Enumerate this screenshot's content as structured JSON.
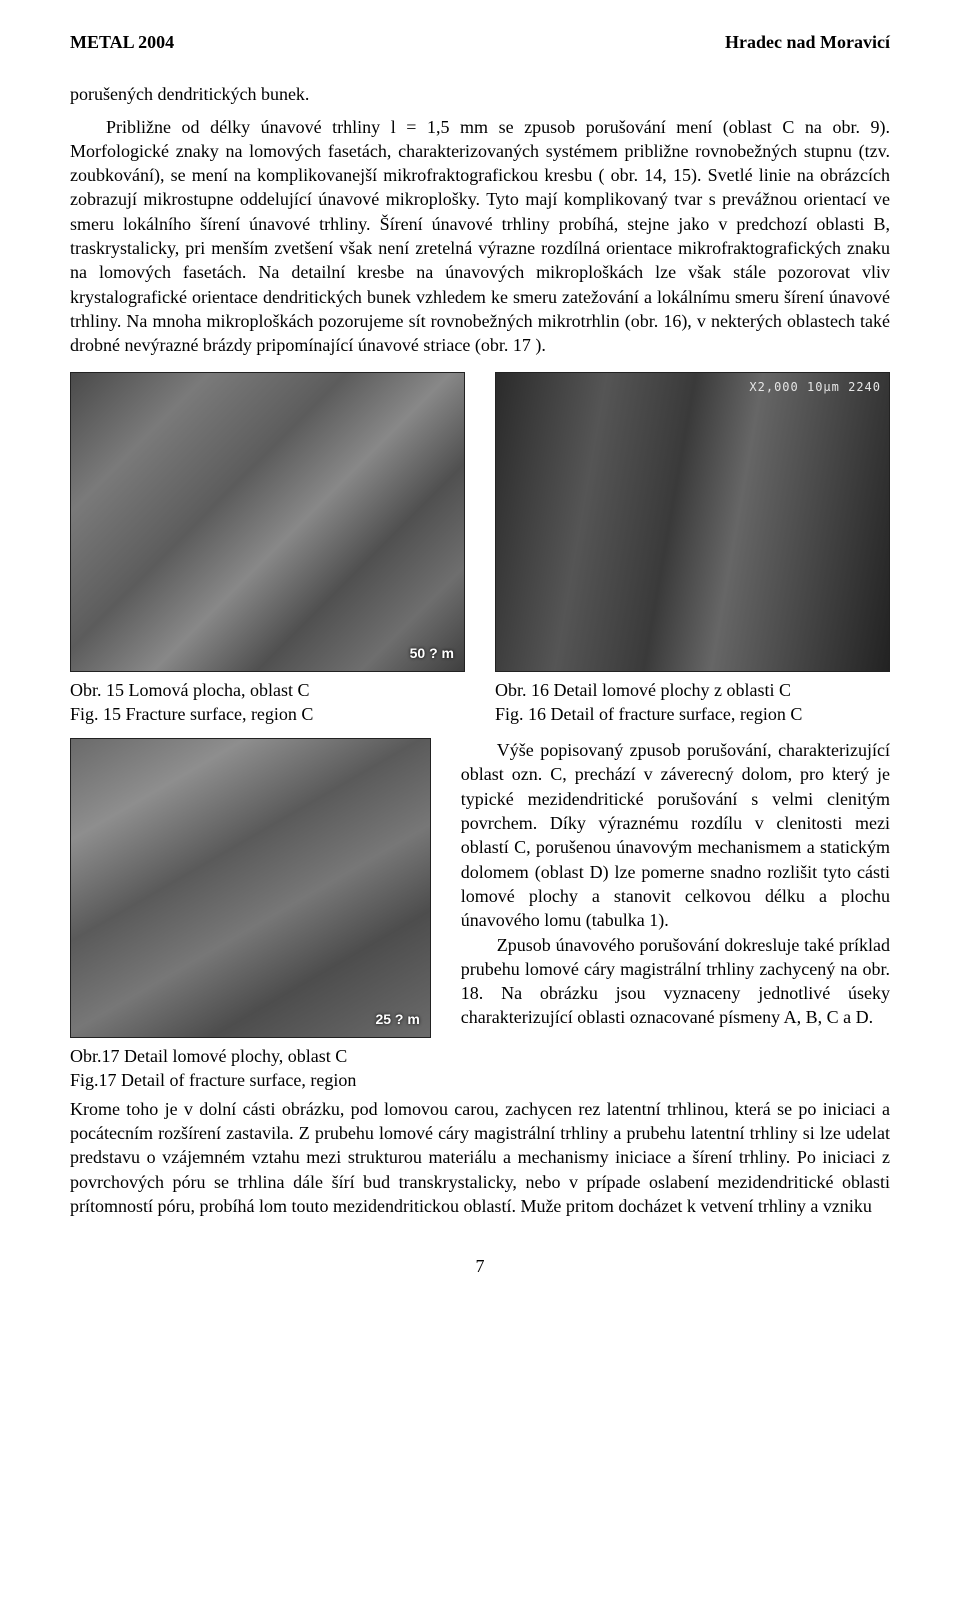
{
  "header": {
    "left": "METAL 2004",
    "right": "Hradec nad Moravicí"
  },
  "para1": "porušených dendritických bunek.",
  "para2": "Približne od délky únavové trhliny l = 1,5 mm se zpusob porušování mení (oblast C na obr. 9). Morfologické znaky na lomových fasetách, charakterizovaných systémem približne rovnobežných stupnu (tzv. zoubkování), se mení na komplikovanejší mikrofraktografickou kresbu ( obr. 14, 15). Svetlé linie na obrázcích zobrazují mikrostupne oddelující únavové mikroplošky. Tyto mají komplikovaný tvar s prevážnou orientací ve smeru lokálního šírení únavové trhliny. Šírení únavové trhliny probíhá, stejne jako v predchozí oblasti B, traskrystalicky, pri menším zvetšení však není zretelná výrazne rozdílná orientace mikrofraktografických znaku na lomových fasetách. Na detailní kresbe na únavových mikroploškách lze však stále pozorovat vliv krystalografické orientace dendritických bunek vzhledem ke smeru zatežování a lokálnímu smeru šírení únavové trhliny. Na mnoha mikroploškách pozorujeme sít rovnobežných mikrotrhlin (obr. 16), v nekterých oblastech také drobné nevýrazné brázdy pripomínající únavové striace (obr. 17 ).",
  "fig15": {
    "scale": "50 ? m",
    "caption_cs": "Obr. 15 Lomová plocha, oblast C",
    "caption_en": "Fig. 15 Fracture surface, region C"
  },
  "fig16": {
    "toplabel": "X2,000  10µm  2240",
    "caption_cs": "Obr. 16 Detail lomové plochy z oblasti C",
    "caption_en": "Fig. 16 Detail of fracture surface, region C"
  },
  "fig17": {
    "scale": "25 ? m",
    "caption_cs": "Obr.17 Detail lomové plochy, oblast C",
    "caption_en": "Fig.17 Detail of fracture surface, region"
  },
  "right_para": "Výše popisovaný zpusob porušování, charakterizující oblast ozn. C, prechází v záverecný dolom, pro který je typické mezidendritické porušování s velmi clenitým povrchem. Díky výraznému rozdílu v clenitosti mezi oblastí C, porušenou únavovým mechanismem a statickým dolomem (oblast D) lze pomerne snadno rozlišit tyto cásti lomové plochy a stanovit celkovou délku a plochu únavového lomu (tabulka 1).",
  "right_para2": "Zpusob únavového porušování dokresluje také príklad prubehu lomové cáry magistrální trhliny zachycený na obr. 18. Na obrázku jsou vyznaceny jednotlivé úseky charakterizující oblasti oznacované písmeny A, B, C a D.",
  "cont_para": "Krome toho je v dolní cásti obrázku, pod lomovou carou, zachycen rez latentní trhlinou, která se po iniciaci a pocátecním rozšírení zastavila. Z prubehu lomové cáry magistrální trhliny a prubehu latentní trhliny si lze udelat predstavu o vzájemném vztahu mezi strukturou materiálu a mechanismy iniciace a šírení trhliny. Po iniciaci z povrchových póru se trhlina dále šírí bud transkrystalicky, nebo v prípade oslabení mezidendritické oblasti prítomností póru, probíhá lom touto mezidendritickou oblastí. Muže pritom docházet k vetvení trhliny a vzniku",
  "page_number": "7"
}
